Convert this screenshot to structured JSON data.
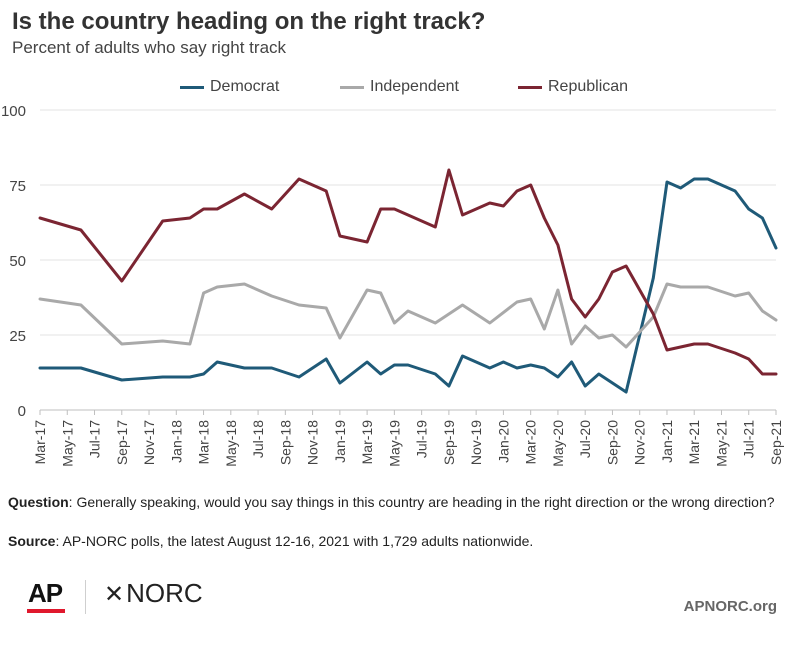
{
  "header": {
    "title": "Is the country heading on the right track?",
    "subtitle": "Percent of adults who say right track"
  },
  "chart_data": {
    "type": "line",
    "title": "Is the country heading on the right track?",
    "subtitle": "Percent of adults who say right track",
    "ylim": [
      0,
      100
    ],
    "yticks": [
      0,
      25,
      50,
      75,
      100
    ],
    "grid": true,
    "legend_position": "top-center",
    "x_tick_labels": [
      "Mar-17",
      "May-17",
      "Jul-17",
      "Sep-17",
      "Nov-17",
      "Jan-18",
      "Mar-18",
      "May-18",
      "Jul-18",
      "Sep-18",
      "Nov-18",
      "Jan-19",
      "Mar-19",
      "May-19",
      "Jul-19",
      "Sep-19",
      "Nov-19",
      "Jan-20",
      "Mar-20",
      "May-20",
      "Jul-20",
      "Sep-20",
      "Nov-20",
      "Jan-21",
      "Mar-21",
      "May-21",
      "Jul-21",
      "Sep-21"
    ],
    "series": [
      {
        "name": "Democrat",
        "color": "#1f5a78",
        "points": [
          [
            "2017-03",
            14
          ],
          [
            "2017-06",
            14
          ],
          [
            "2017-09",
            10
          ],
          [
            "2017-12",
            11
          ],
          [
            "2018-02",
            11
          ],
          [
            "2018-03",
            12
          ],
          [
            "2018-04",
            16
          ],
          [
            "2018-06",
            14
          ],
          [
            "2018-08",
            14
          ],
          [
            "2018-10",
            11
          ],
          [
            "2018-12",
            17
          ],
          [
            "2019-01",
            9
          ],
          [
            "2019-03",
            16
          ],
          [
            "2019-04",
            12
          ],
          [
            "2019-05",
            15
          ],
          [
            "2019-06",
            15
          ],
          [
            "2019-08",
            12
          ],
          [
            "2019-09",
            8
          ],
          [
            "2019-10",
            18
          ],
          [
            "2019-12",
            14
          ],
          [
            "2020-01",
            16
          ],
          [
            "2020-02",
            14
          ],
          [
            "2020-03",
            15
          ],
          [
            "2020-04",
            14
          ],
          [
            "2020-05",
            11
          ],
          [
            "2020-06",
            16
          ],
          [
            "2020-07",
            8
          ],
          [
            "2020-08",
            12
          ],
          [
            "2020-10",
            6
          ],
          [
            "2020-12",
            44
          ],
          [
            "2021-01",
            76
          ],
          [
            "2021-02",
            74
          ],
          [
            "2021-03",
            77
          ],
          [
            "2021-04",
            77
          ],
          [
            "2021-06",
            73
          ],
          [
            "2021-07",
            67
          ],
          [
            "2021-08",
            64
          ],
          [
            "2021-09",
            54
          ]
        ]
      },
      {
        "name": "Independent",
        "color": "#a9a9a9",
        "points": [
          [
            "2017-03",
            37
          ],
          [
            "2017-06",
            35
          ],
          [
            "2017-09",
            22
          ],
          [
            "2017-12",
            23
          ],
          [
            "2018-02",
            22
          ],
          [
            "2018-03",
            39
          ],
          [
            "2018-04",
            41
          ],
          [
            "2018-06",
            42
          ],
          [
            "2018-08",
            38
          ],
          [
            "2018-10",
            35
          ],
          [
            "2018-12",
            34
          ],
          [
            "2019-01",
            24
          ],
          [
            "2019-03",
            40
          ],
          [
            "2019-04",
            39
          ],
          [
            "2019-05",
            29
          ],
          [
            "2019-06",
            33
          ],
          [
            "2019-08",
            29
          ],
          [
            "2019-10",
            35
          ],
          [
            "2019-12",
            29
          ],
          [
            "2020-02",
            36
          ],
          [
            "2020-03",
            37
          ],
          [
            "2020-04",
            27
          ],
          [
            "2020-05",
            40
          ],
          [
            "2020-06",
            22
          ],
          [
            "2020-07",
            28
          ],
          [
            "2020-08",
            24
          ],
          [
            "2020-09",
            25
          ],
          [
            "2020-10",
            21
          ],
          [
            "2020-12",
            31
          ],
          [
            "2021-01",
            42
          ],
          [
            "2021-02",
            41
          ],
          [
            "2021-04",
            41
          ],
          [
            "2021-06",
            38
          ],
          [
            "2021-07",
            39
          ],
          [
            "2021-08",
            33
          ],
          [
            "2021-09",
            30
          ]
        ]
      },
      {
        "name": "Republican",
        "color": "#7b2532",
        "points": [
          [
            "2017-03",
            64
          ],
          [
            "2017-06",
            60
          ],
          [
            "2017-09",
            43
          ],
          [
            "2017-12",
            63
          ],
          [
            "2018-02",
            64
          ],
          [
            "2018-03",
            67
          ],
          [
            "2018-04",
            67
          ],
          [
            "2018-06",
            72
          ],
          [
            "2018-08",
            67
          ],
          [
            "2018-10",
            77
          ],
          [
            "2018-12",
            73
          ],
          [
            "2019-01",
            58
          ],
          [
            "2019-03",
            56
          ],
          [
            "2019-04",
            67
          ],
          [
            "2019-05",
            67
          ],
          [
            "2019-08",
            61
          ],
          [
            "2019-09",
            80
          ],
          [
            "2019-10",
            65
          ],
          [
            "2019-12",
            69
          ],
          [
            "2020-01",
            68
          ],
          [
            "2020-02",
            73
          ],
          [
            "2020-03",
            75
          ],
          [
            "2020-04",
            64
          ],
          [
            "2020-05",
            55
          ],
          [
            "2020-06",
            37
          ],
          [
            "2020-07",
            31
          ],
          [
            "2020-08",
            37
          ],
          [
            "2020-09",
            46
          ],
          [
            "2020-10",
            48
          ],
          [
            "2020-12",
            32
          ],
          [
            "2021-01",
            20
          ],
          [
            "2021-03",
            22
          ],
          [
            "2021-04",
            22
          ],
          [
            "2021-06",
            19
          ],
          [
            "2021-07",
            17
          ],
          [
            "2021-08",
            12
          ],
          [
            "2021-09",
            12
          ]
        ]
      }
    ]
  },
  "notes": {
    "question_label": "Question",
    "question_text": ": Generally speaking, would you say things in this country are heading in the right direction or the wrong direction?",
    "source_label": "Source",
    "source_text": ": AP-NORC polls, the latest  August 12-16, 2021 with 1,729 adults nationwide."
  },
  "footer": {
    "ap_logo": "AP",
    "norc_logo": "NORC",
    "site": "APNORC.org"
  }
}
